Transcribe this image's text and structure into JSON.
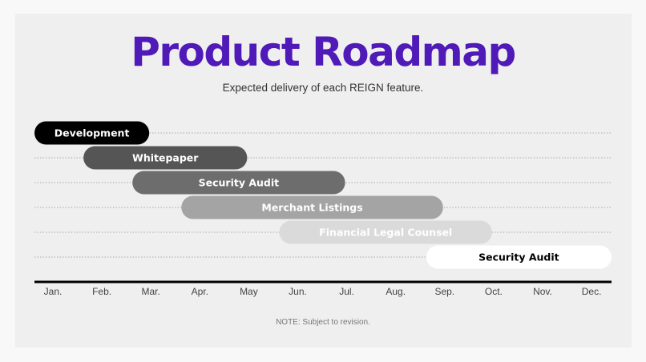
{
  "title": "Product Roadmap",
  "subtitle": "Expected delivery of each REIGN feature.",
  "note": "NOTE: Subject to revision.",
  "chart_data": {
    "type": "gantt",
    "months": [
      "Jan.",
      "Feb.",
      "Mar.",
      "Apr.",
      "May",
      "Jun.",
      "Jul.",
      "Aug.",
      "Sep.",
      "Oct.",
      "Nov.",
      "Dec."
    ],
    "tasks": [
      {
        "label": "Development",
        "start": "Jan.",
        "end": "Mar.",
        "color": "#000000",
        "text_color": "#ffffff"
      },
      {
        "label": "Whitepaper",
        "start": "Feb.",
        "end": "May",
        "color": "#555555",
        "text_color": "#ffffff"
      },
      {
        "label": "Security Audit",
        "start": "Mar.",
        "end": "Jul.",
        "color": "#6d6d6d",
        "text_color": "#ffffff"
      },
      {
        "label": "Merchant Listings",
        "start": "Apr.",
        "end": "Sep.",
        "color": "#a4a4a4",
        "text_color": "#ffffff"
      },
      {
        "label": "Financial Legal Counsel",
        "start": "Jun.",
        "end": "Oct.",
        "color": "#dadada",
        "text_color": "#ffffff"
      },
      {
        "label": "Security Audit",
        "start": "Sep.",
        "end": "Dec.",
        "color": "#ffffff",
        "text_color": "#000000"
      }
    ],
    "grid": true
  }
}
